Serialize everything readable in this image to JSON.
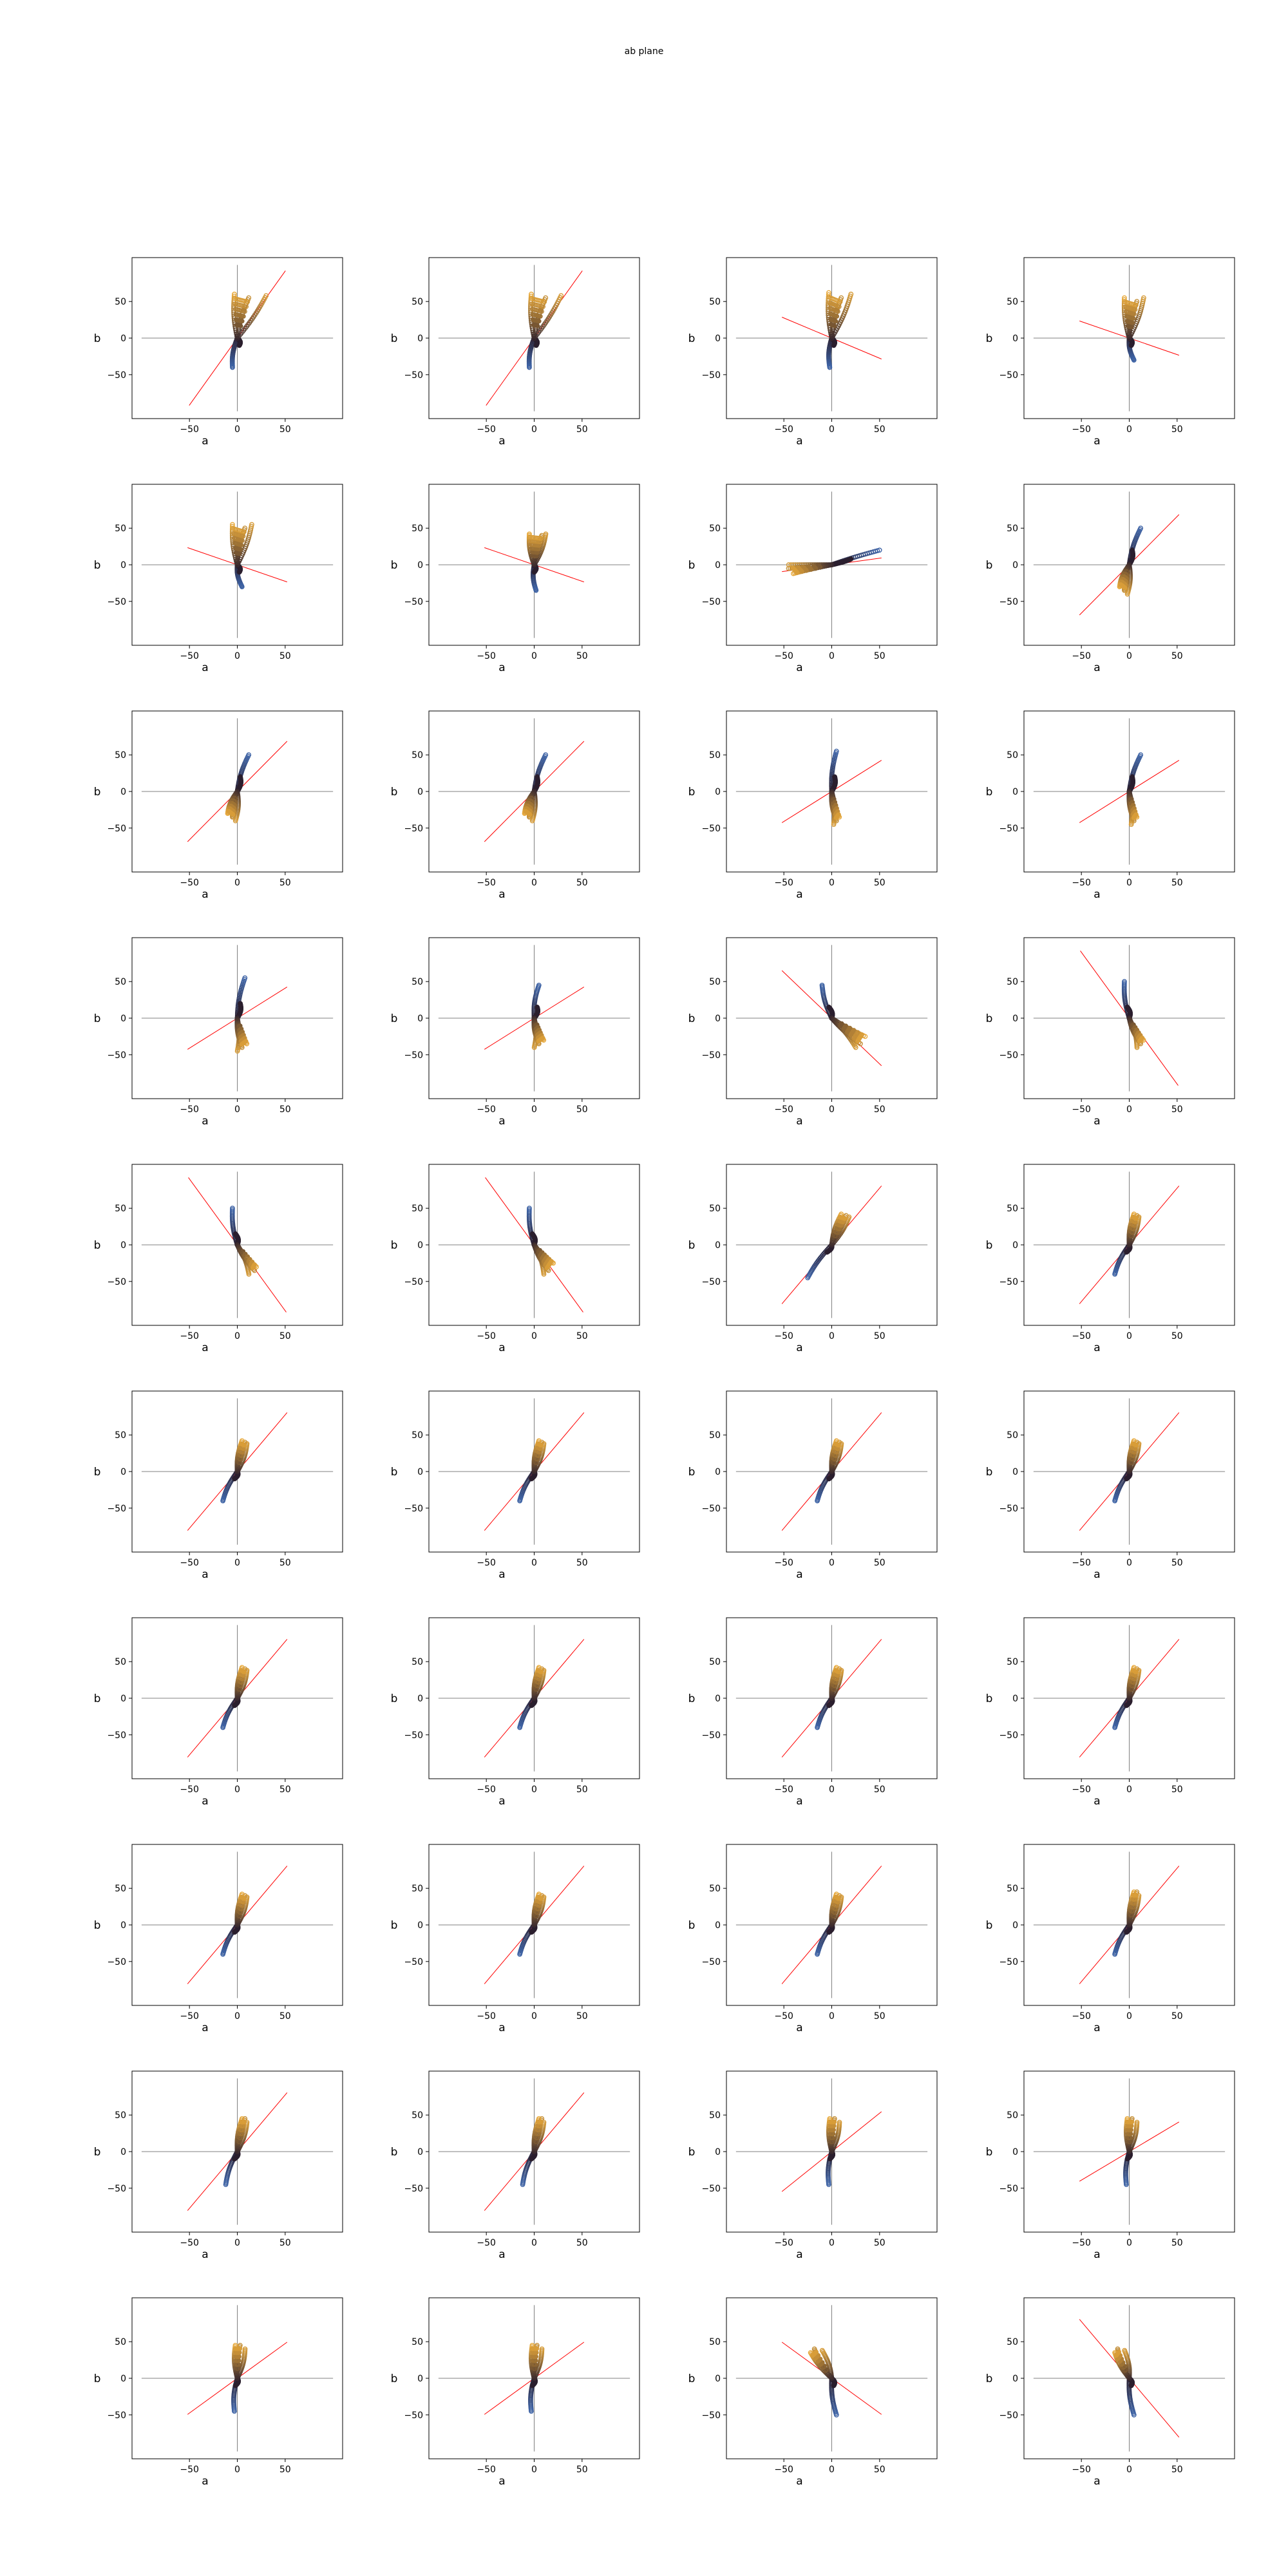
{
  "title": "ab plane",
  "chart_data": {
    "type": "scatter",
    "title": "ab plane",
    "grid": {
      "rows": 10,
      "cols": 4
    },
    "xlabel": "a",
    "ylabel": "b",
    "xlim": [
      -110,
      110
    ],
    "ylim": [
      -110,
      110
    ],
    "xticks": [
      -50,
      0,
      50
    ],
    "yticks_default": [
      50,
      0,
      -50
    ],
    "colors": {
      "points_start": "#3d63a6",
      "points_mid": "#2b1f2e",
      "points_end": "#e8a93a",
      "fit_line": "#ff0000",
      "axes_lines": "#808080"
    },
    "panels": [
      {
        "id": 1,
        "slope": 1.83,
        "yticks": [
          50,
          0,
          -50
        ],
        "arms": [
          [
            -5,
            -40
          ],
          [
            2,
            -10
          ],
          [
            12,
            55
          ],
          [
            30,
            58
          ],
          [
            -3,
            60
          ]
        ],
        "fan": "up"
      },
      {
        "id": 2,
        "slope": 1.83,
        "yticks": [
          50,
          0,
          -50
        ],
        "arms": [
          [
            -5,
            -40
          ],
          [
            2,
            -10
          ],
          [
            12,
            55
          ],
          [
            28,
            58
          ],
          [
            -3,
            60
          ]
        ],
        "fan": "up"
      },
      {
        "id": 3,
        "slope": -0.55,
        "yticks": [
          50,
          0,
          -50
        ],
        "arms": [
          [
            -2,
            -40
          ],
          [
            2,
            -10
          ],
          [
            10,
            55
          ],
          [
            20,
            60
          ],
          [
            -3,
            62
          ]
        ],
        "fan": "up"
      },
      {
        "id": 4,
        "slope": -0.45,
        "yticks": [
          50,
          0,
          -50
        ],
        "arms": [
          [
            5,
            -30
          ],
          [
            2,
            -10
          ],
          [
            8,
            50
          ],
          [
            15,
            55
          ],
          [
            -5,
            55
          ]
        ],
        "fan": "up"
      },
      {
        "id": 5,
        "slope": -0.45,
        "yticks": [
          50,
          0,
          -50
        ],
        "arms": [
          [
            5,
            -30
          ],
          [
            2,
            -10
          ],
          [
            8,
            50
          ],
          [
            15,
            55
          ],
          [
            -5,
            55
          ]
        ],
        "fan": "up"
      },
      {
        "id": 6,
        "slope": -0.45,
        "yticks": [
          50,
          0,
          -50
        ],
        "arms": [
          [
            2,
            -35
          ],
          [
            0,
            -10
          ],
          [
            8,
            40
          ],
          [
            12,
            42
          ],
          [
            -5,
            42
          ]
        ],
        "fan": "up"
      },
      {
        "id": 7,
        "slope": 0.18,
        "yticks": [
          50,
          0,
          -50
        ],
        "arms": [
          [
            50,
            20
          ],
          [
            20,
            8
          ],
          [
            -45,
            -5
          ],
          [
            -45,
            0
          ],
          [
            -40,
            -12
          ]
        ],
        "fan": "left"
      },
      {
        "id": 8,
        "slope": 1.32,
        "yticks": [
          50,
          0,
          -50
        ],
        "arms": [
          [
            12,
            50
          ],
          [
            3,
            20
          ],
          [
            -5,
            -35
          ],
          [
            -2,
            -40
          ],
          [
            -10,
            -30
          ]
        ],
        "fan": "down"
      },
      {
        "id": 9,
        "slope": 1.32,
        "yticks": [
          50,
          0,
          -50
        ],
        "arms": [
          [
            12,
            50
          ],
          [
            3,
            20
          ],
          [
            -5,
            -35
          ],
          [
            -2,
            -40
          ],
          [
            -10,
            -30
          ]
        ],
        "fan": "down"
      },
      {
        "id": 10,
        "slope": 1.32,
        "yticks": [
          50,
          0,
          -50
        ],
        "arms": [
          [
            12,
            50
          ],
          [
            3,
            20
          ],
          [
            -5,
            -35
          ],
          [
            -2,
            -40
          ],
          [
            -10,
            -30
          ]
        ],
        "fan": "down"
      },
      {
        "id": 11,
        "slope": 0.82,
        "yticks": [
          50,
          0,
          -50
        ],
        "arms": [
          [
            5,
            55
          ],
          [
            3,
            20
          ],
          [
            5,
            -40
          ],
          [
            2,
            -45
          ],
          [
            8,
            -35
          ]
        ],
        "fan": "down"
      },
      {
        "id": 12,
        "slope": 0.82,
        "yticks": [
          50,
          0,
          -50
        ],
        "arms": [
          [
            12,
            50
          ],
          [
            3,
            20
          ],
          [
            5,
            -40
          ],
          [
            2,
            -45
          ],
          [
            8,
            -35
          ]
        ],
        "fan": "down"
      },
      {
        "id": 13,
        "slope": 0.82,
        "yticks": [
          50,
          0,
          -50
        ],
        "arms": [
          [
            8,
            55
          ],
          [
            3,
            20
          ],
          [
            5,
            -40
          ],
          [
            0,
            -45
          ],
          [
            10,
            -35
          ]
        ],
        "fan": "down"
      },
      {
        "id": 14,
        "slope": 0.82,
        "yticks": [
          50,
          0,
          -50
        ],
        "arms": [
          [
            5,
            45
          ],
          [
            3,
            15
          ],
          [
            5,
            -35
          ],
          [
            0,
            -40
          ],
          [
            10,
            -30
          ]
        ],
        "fan": "down"
      },
      {
        "id": 15,
        "slope": -1.25,
        "yticks": [
          50,
          0,
          -50
        ],
        "arms": [
          [
            -10,
            45
          ],
          [
            -3,
            15
          ],
          [
            30,
            -35
          ],
          [
            25,
            -40
          ],
          [
            35,
            -25
          ]
        ],
        "fan": "downright"
      },
      {
        "id": 16,
        "slope": -1.8,
        "yticks": [
          50,
          0,
          -50
        ],
        "arms": [
          [
            -5,
            50
          ],
          [
            -2,
            15
          ],
          [
            12,
            -35
          ],
          [
            8,
            -40
          ],
          [
            15,
            -30
          ]
        ],
        "fan": "downright"
      },
      {
        "id": 17,
        "slope": -1.8,
        "yticks": [
          50,
          0,
          -50
        ],
        "arms": [
          [
            -5,
            50
          ],
          [
            -2,
            15
          ],
          [
            18,
            -35
          ],
          [
            12,
            -40
          ],
          [
            20,
            -30
          ]
        ],
        "fan": "downright"
      },
      {
        "id": 18,
        "slope": -1.8,
        "yticks": [
          50,
          0,
          -50
        ],
        "arms": [
          [
            -5,
            50
          ],
          [
            -2,
            15
          ],
          [
            15,
            -35
          ],
          [
            10,
            -40
          ],
          [
            20,
            -25
          ]
        ],
        "fan": "downright"
      },
      {
        "id": 19,
        "slope": 1.55,
        "yticks": [
          50,
          0,
          -50
        ],
        "arms": [
          [
            -25,
            -45
          ],
          [
            -5,
            -10
          ],
          [
            15,
            40
          ],
          [
            18,
            38
          ],
          [
            10,
            42
          ]
        ],
        "fan": "upright"
      },
      {
        "id": 20,
        "slope": 1.55,
        "yticks": [
          50,
          0,
          -50
        ],
        "arms": [
          [
            -15,
            -40
          ],
          [
            -3,
            -10
          ],
          [
            8,
            40
          ],
          [
            10,
            38
          ],
          [
            5,
            42
          ]
        ],
        "fan": "upright"
      },
      {
        "id": 21,
        "slope": 1.55,
        "yticks": [
          50,
          0,
          -50
        ],
        "arms": [
          [
            -15,
            -40
          ],
          [
            -3,
            -10
          ],
          [
            8,
            40
          ],
          [
            10,
            38
          ],
          [
            5,
            42
          ]
        ],
        "fan": "upright"
      },
      {
        "id": 22,
        "slope": 1.55,
        "yticks": [
          50,
          0,
          -50
        ],
        "arms": [
          [
            -15,
            -40
          ],
          [
            -3,
            -10
          ],
          [
            8,
            40
          ],
          [
            10,
            38
          ],
          [
            5,
            42
          ]
        ],
        "fan": "upright"
      },
      {
        "id": 23,
        "slope": 1.55,
        "yticks": [
          50,
          0,
          -50
        ],
        "arms": [
          [
            -15,
            -40
          ],
          [
            -3,
            -10
          ],
          [
            8,
            40
          ],
          [
            10,
            38
          ],
          [
            5,
            42
          ]
        ],
        "fan": "upright"
      },
      {
        "id": 24,
        "slope": 1.55,
        "yticks": [
          50,
          0,
          -50
        ],
        "arms": [
          [
            -15,
            -40
          ],
          [
            -3,
            -10
          ],
          [
            8,
            40
          ],
          [
            10,
            38
          ],
          [
            5,
            42
          ]
        ],
        "fan": "upright"
      },
      {
        "id": 25,
        "slope": 1.55,
        "yticks": [
          50,
          0,
          -50
        ],
        "arms": [
          [
            -15,
            -40
          ],
          [
            -3,
            -10
          ],
          [
            8,
            40
          ],
          [
            10,
            38
          ],
          [
            5,
            42
          ]
        ],
        "fan": "upright"
      },
      {
        "id": 26,
        "slope": 1.55,
        "yticks": [
          50,
          0,
          -50
        ],
        "arms": [
          [
            -15,
            -40
          ],
          [
            -3,
            -10
          ],
          [
            8,
            40
          ],
          [
            10,
            38
          ],
          [
            5,
            42
          ]
        ],
        "fan": "upright"
      },
      {
        "id": 27,
        "slope": 1.55,
        "yticks": [
          50,
          0,
          -50
        ],
        "arms": [
          [
            -15,
            -40
          ],
          [
            -3,
            -10
          ],
          [
            8,
            40
          ],
          [
            10,
            38
          ],
          [
            5,
            42
          ]
        ],
        "fan": "upright"
      },
      {
        "id": 28,
        "slope": 1.55,
        "yticks": [
          50,
          0,
          -50
        ],
        "arms": [
          [
            -15,
            -40
          ],
          [
            -3,
            -10
          ],
          [
            8,
            40
          ],
          [
            10,
            38
          ],
          [
            5,
            42
          ]
        ],
        "fan": "upright"
      },
      {
        "id": 29,
        "slope": 1.55,
        "yticks": [
          50,
          0,
          -50
        ],
        "arms": [
          [
            -15,
            -40
          ],
          [
            -3,
            -10
          ],
          [
            8,
            40
          ],
          [
            10,
            38
          ],
          [
            5,
            42
          ]
        ],
        "fan": "upright"
      },
      {
        "id": 30,
        "slope": 1.55,
        "yticks": [
          50,
          0,
          -50
        ],
        "arms": [
          [
            -15,
            -40
          ],
          [
            -3,
            -10
          ],
          [
            8,
            40
          ],
          [
            10,
            38
          ],
          [
            5,
            42
          ]
        ],
        "fan": "upright"
      },
      {
        "id": 31,
        "slope": 1.55,
        "yticks": [
          50,
          0,
          -50
        ],
        "arms": [
          [
            -15,
            -40
          ],
          [
            -3,
            -10
          ],
          [
            8,
            40
          ],
          [
            10,
            38
          ],
          [
            5,
            42
          ]
        ],
        "fan": "upright"
      },
      {
        "id": 32,
        "slope": 1.55,
        "yticks": [
          50,
          0,
          -50
        ],
        "arms": [
          [
            -15,
            -40
          ],
          [
            -3,
            -10
          ],
          [
            8,
            45
          ],
          [
            10,
            40
          ],
          [
            5,
            45
          ]
        ],
        "fan": "upright"
      },
      {
        "id": 33,
        "slope": 1.55,
        "yticks": [
          50,
          0,
          -50
        ],
        "arms": [
          [
            -12,
            -45
          ],
          [
            -3,
            -10
          ],
          [
            8,
            45
          ],
          [
            10,
            40
          ],
          [
            5,
            45
          ]
        ],
        "fan": "upright"
      },
      {
        "id": 34,
        "slope": 1.55,
        "yticks": [
          50,
          0,
          -50
        ],
        "arms": [
          [
            -12,
            -45
          ],
          [
            -3,
            -10
          ],
          [
            8,
            45
          ],
          [
            10,
            40
          ],
          [
            5,
            45
          ]
        ],
        "fan": "upright"
      },
      {
        "id": 35,
        "slope": 1.05,
        "yticks": [
          50,
          0,
          -50
        ],
        "arms": [
          [
            -3,
            -45
          ],
          [
            -2,
            -10
          ],
          [
            3,
            45
          ],
          [
            8,
            40
          ],
          [
            -2,
            45
          ]
        ],
        "fan": "up"
      },
      {
        "id": 36,
        "slope": 0.78,
        "yticks": [
          50,
          0,
          -50
        ],
        "arms": [
          [
            -3,
            -45
          ],
          [
            -2,
            -10
          ],
          [
            3,
            45
          ],
          [
            8,
            40
          ],
          [
            -2,
            45
          ]
        ],
        "fan": "up"
      },
      {
        "id": 37,
        "slope": 0.95,
        "yticks": [
          50,
          0,
          -50
        ],
        "arms": [
          [
            -3,
            -45
          ],
          [
            -2,
            -10
          ],
          [
            3,
            45
          ],
          [
            8,
            40
          ],
          [
            -2,
            45
          ]
        ],
        "fan": "up"
      },
      {
        "id": 38,
        "slope": 0.95,
        "yticks": [
          50,
          0,
          -50
        ],
        "arms": [
          [
            -3,
            -45
          ],
          [
            -2,
            -10
          ],
          [
            3,
            45
          ],
          [
            8,
            40
          ],
          [
            -2,
            45
          ]
        ],
        "fan": "up"
      },
      {
        "id": 39,
        "slope": -0.95,
        "yticks": [
          50,
          0,
          -50
        ],
        "arms": [
          [
            5,
            -50
          ],
          [
            2,
            -10
          ],
          [
            -18,
            40
          ],
          [
            -10,
            38
          ],
          [
            -22,
            35
          ]
        ],
        "fan": "upleft"
      },
      {
        "id": 40,
        "slope": -1.55,
        "yticks": [
          50,
          0,
          -50
        ],
        "arms": [
          [
            5,
            -50
          ],
          [
            2,
            -10
          ],
          [
            -12,
            40
          ],
          [
            -5,
            38
          ],
          [
            -15,
            35
          ]
        ],
        "fan": "upleft"
      }
    ]
  }
}
